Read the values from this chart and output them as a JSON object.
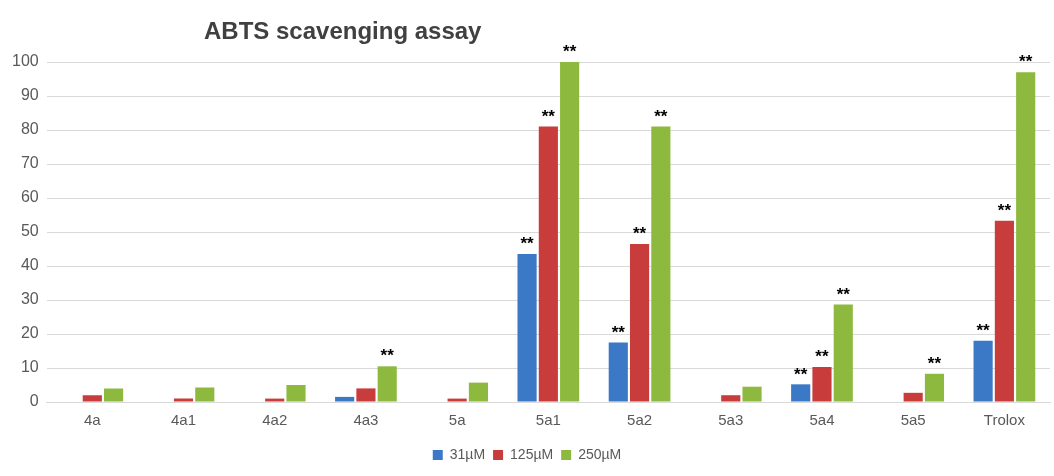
{
  "chart_data": {
    "type": "bar",
    "title": "ABTS scavenging assay",
    "categories": [
      "4a",
      "4a1",
      "4a2",
      "4a3",
      "5a",
      "5a1",
      "5a2",
      "5a3",
      "5a4",
      "5a5",
      "Trolox"
    ],
    "series": [
      {
        "name": "31µM",
        "color": "#3b78c6",
        "values": [
          0,
          0,
          0,
          1.5,
          0,
          43.5,
          17.5,
          0,
          5.2,
          0,
          18
        ],
        "value_labels": [
          null,
          null,
          null,
          null,
          null,
          "**",
          "**",
          null,
          "**",
          null,
          "**"
        ]
      },
      {
        "name": "125µM",
        "color": "#c93c3c",
        "values": [
          2,
          1,
          1,
          4,
          1,
          81,
          46.5,
          2,
          10.3,
          2.7,
          53.3
        ],
        "value_labels": [
          null,
          null,
          null,
          null,
          null,
          "**",
          "**",
          null,
          "**",
          null,
          "**"
        ]
      },
      {
        "name": "250µM",
        "color": "#8dba3e",
        "values": [
          4,
          4.3,
          5,
          10.5,
          5.7,
          100,
          81,
          4.5,
          28.7,
          8.3,
          97
        ],
        "value_labels": [
          null,
          null,
          null,
          "**",
          null,
          "**",
          "**",
          null,
          "**",
          "**",
          "**"
        ]
      }
    ],
    "ylim": [
      0,
      100
    ],
    "yticks": [
      0,
      10,
      20,
      30,
      40,
      50,
      60,
      70,
      80,
      90,
      100
    ],
    "grid": "y",
    "legend": "bottom"
  }
}
